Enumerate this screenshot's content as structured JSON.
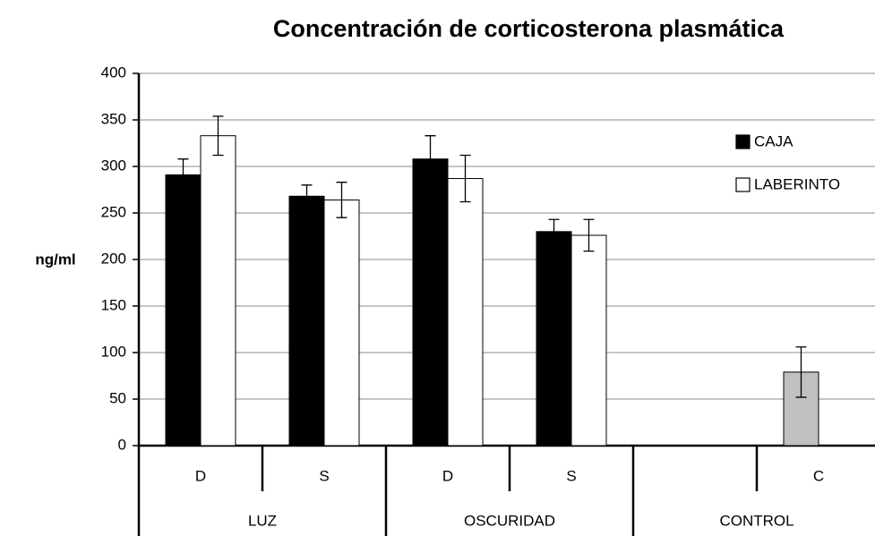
{
  "chart_data": {
    "type": "bar",
    "title": "Concentración de corticosterona plasmática",
    "y_label": "ng/ml",
    "categories": [
      "D",
      "S",
      "D",
      "S",
      null,
      "C"
    ],
    "groups": [
      {
        "label": "LUZ",
        "count": 2
      },
      {
        "label": "OSCURIDAD",
        "count": 2
      },
      {
        "label": "CONTROL",
        "count": 2
      }
    ],
    "series": [
      {
        "name": "CAJA",
        "color": "#000000",
        "colors": [
          "#000000",
          "#000000",
          "#000000",
          "#000000",
          "#000000",
          "#c0c0c0"
        ],
        "values": [
          291,
          268,
          308,
          230,
          null,
          79
        ],
        "errors": [
          17,
          12,
          25,
          13,
          null,
          27
        ]
      },
      {
        "name": "LABERINTO",
        "color": "#ffffff",
        "values": [
          333,
          264,
          287,
          226,
          null,
          null
        ],
        "errors": [
          21,
          19,
          25,
          17,
          null,
          null
        ]
      }
    ],
    "ylim": [
      0,
      400
    ],
    "yticks": [
      0,
      50,
      100,
      150,
      200,
      250,
      300,
      350,
      400
    ],
    "grid": true,
    "legend": "right"
  }
}
